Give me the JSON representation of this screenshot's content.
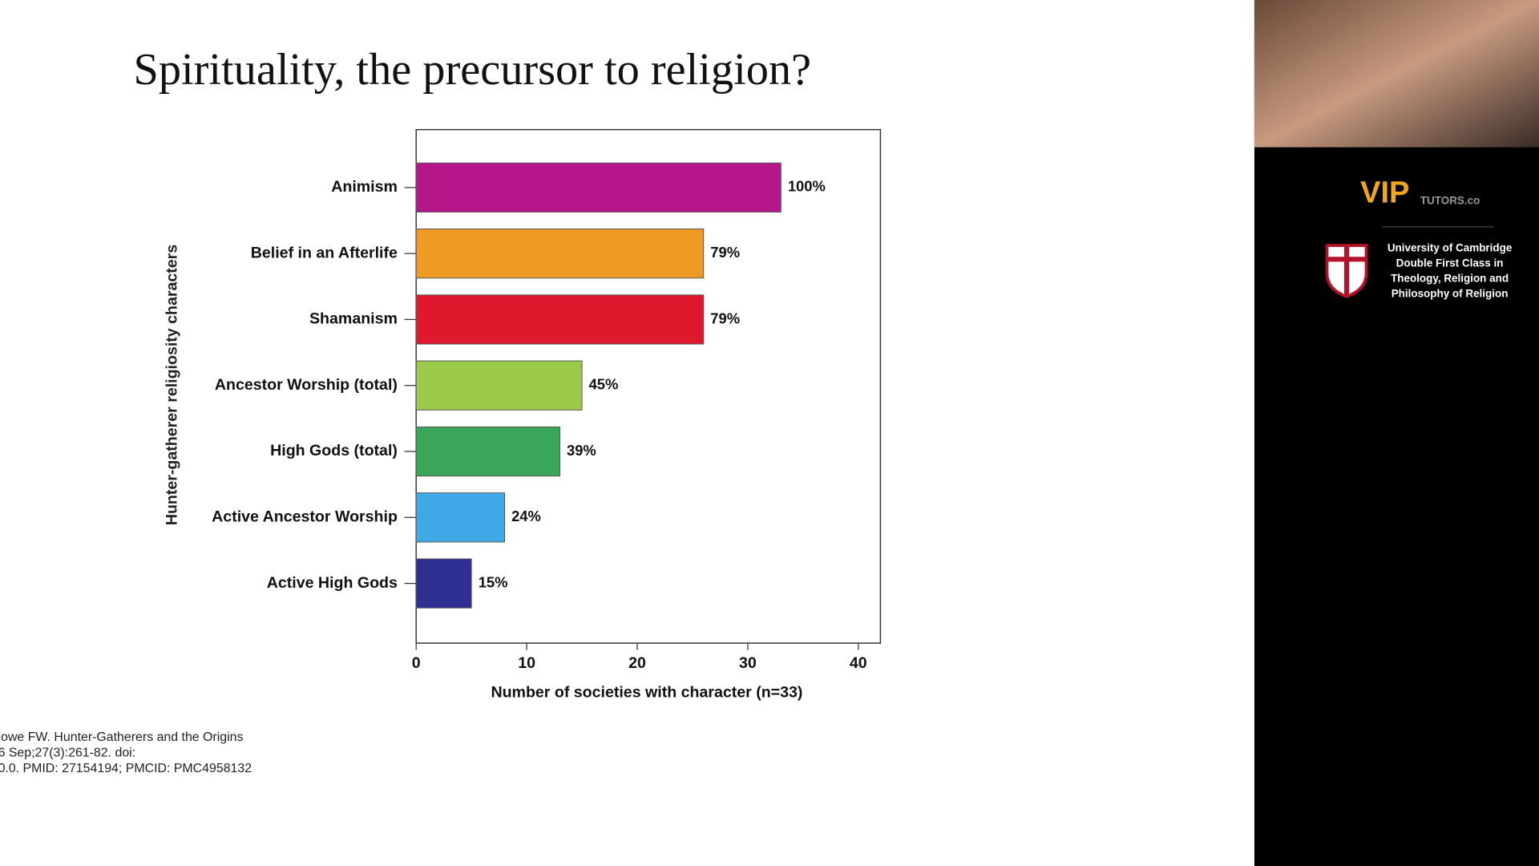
{
  "slide": {
    "title": "Spirituality, the precursor to religion?",
    "citation": [
      "lowe FW. Hunter-Gatherers and the Origins",
      "6 Sep;27(3):261-82. doi:",
      "0.0. PMID: 27154194; PMCID: PMC4958132"
    ]
  },
  "chart_data": {
    "type": "hbar",
    "categories": [
      "Animism",
      "Belief in an Afterlife",
      "Shamanism",
      "Ancestor Worship (total)",
      "High Gods (total)",
      "Active Ancestor Worship",
      "Active High Gods"
    ],
    "values": [
      33,
      26,
      26,
      15,
      13,
      8,
      5
    ],
    "value_labels": [
      "100%",
      "79%",
      "79%",
      "45%",
      "39%",
      "24%",
      "15%"
    ],
    "colors": [
      "#b5178a",
      "#ee9a25",
      "#e0182d",
      "#9bc94a",
      "#3aa65a",
      "#3fa9e8",
      "#2e3192"
    ],
    "x_label": "Number of societies with character (n=33)",
    "y_label": "Hunter-gatherer religiosity characters",
    "xlim": [
      0,
      42
    ],
    "xticks": [
      0,
      10,
      20,
      30,
      40
    ]
  },
  "sidebar": {
    "logo": "VIP",
    "logo_suffix": "TUTORS.co",
    "credentials": [
      "University of Cambridge",
      "Double First Class in",
      "Theology, Religion and",
      "Philosophy of Religion"
    ]
  }
}
